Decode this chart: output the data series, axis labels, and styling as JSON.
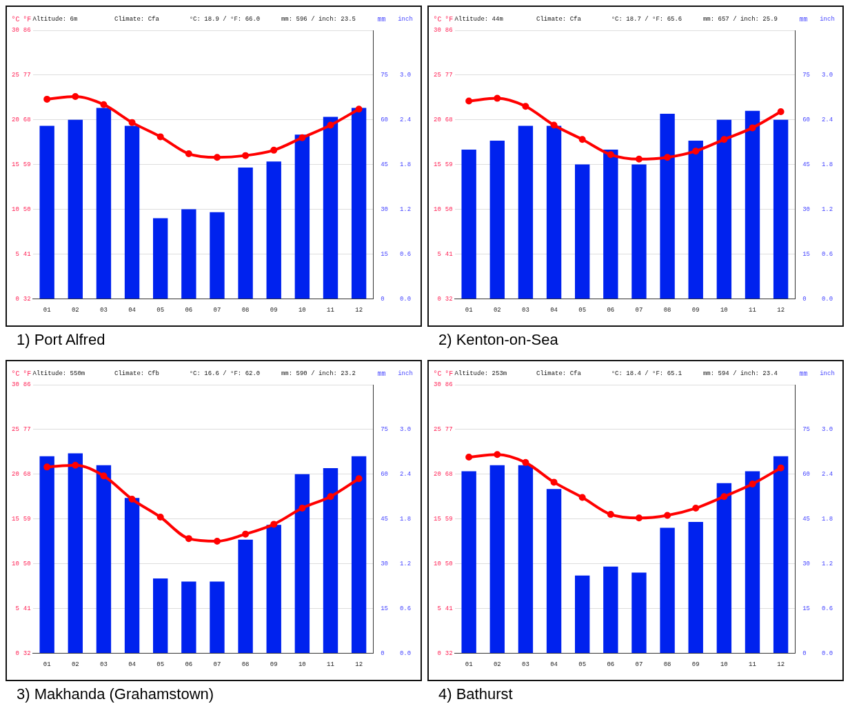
{
  "chart_data": [
    {
      "type": "bar",
      "title": "1) Port Alfred",
      "categories": [
        "01",
        "02",
        "03",
        "04",
        "05",
        "06",
        "07",
        "08",
        "09",
        "10",
        "11",
        "12"
      ],
      "series": [
        {
          "axis": "y2",
          "color": "#0022ee",
          "values": [
            58,
            60,
            64,
            58,
            27,
            30,
            29,
            44,
            46,
            55,
            61,
            64
          ]
        },
        {
          "type": "line",
          "axis": "y",
          "color": "#ff0000",
          "values": [
            22.3,
            22.6,
            21.7,
            19.7,
            18.1,
            16.2,
            15.8,
            16.0,
            16.6,
            18.0,
            19.4,
            21.2
          ]
        }
      ],
      "ylabel": "°C",
      "y3label": "°F",
      "y2label": "mm",
      "ylim": [
        0,
        30
      ],
      "yticks": [
        0,
        5,
        10,
        15,
        20,
        25,
        30
      ],
      "y3lim": [
        32,
        86
      ],
      "y3ticks": [
        32,
        41,
        50,
        59,
        68,
        77,
        86
      ],
      "y2lim": [
        0,
        90
      ],
      "y2ticks": [
        0,
        15,
        30,
        45,
        60,
        75
      ],
      "grid": "y",
      "legend": false,
      "marker": "circle",
      "annotations": [
        "Altitude: 6m",
        "Climate: Cfa",
        "°C: 18.9 / °F: 66.0",
        "mm: 596 / inch: 23.5",
        "inch",
        "0.0",
        "0.6",
        "1.2",
        "1.8",
        "2.4",
        "3.0"
      ]
    },
    {
      "type": "bar",
      "title": "2) Kenton-on-Sea",
      "categories": [
        "01",
        "02",
        "03",
        "04",
        "05",
        "06",
        "07",
        "08",
        "09",
        "10",
        "11",
        "12"
      ],
      "series": [
        {
          "axis": "y2",
          "color": "#0022ee",
          "values": [
            50,
            53,
            58,
            58,
            45,
            50,
            45,
            62,
            53,
            60,
            63,
            60
          ]
        },
        {
          "type": "line",
          "axis": "y",
          "color": "#ff0000",
          "values": [
            22.1,
            22.4,
            21.5,
            19.4,
            17.8,
            16.1,
            15.6,
            15.8,
            16.5,
            17.8,
            19.1,
            20.9
          ]
        }
      ],
      "ylabel": "°C",
      "y3label": "°F",
      "y2label": "mm",
      "ylim": [
        0,
        30
      ],
      "yticks": [
        0,
        5,
        10,
        15,
        20,
        25,
        30
      ],
      "y3lim": [
        32,
        86
      ],
      "y3ticks": [
        32,
        41,
        50,
        59,
        68,
        77,
        86
      ],
      "y2lim": [
        0,
        90
      ],
      "y2ticks": [
        0,
        15,
        30,
        45,
        60,
        75
      ],
      "grid": "y",
      "legend": false,
      "marker": "circle",
      "annotations": [
        "Altitude: 44m",
        "Climate: Cfa",
        "°C: 18.7 / °F: 65.6",
        "mm: 657 / inch: 25.9",
        "inch",
        "0.0",
        "0.6",
        "1.2",
        "1.8",
        "2.4",
        "3.0"
      ]
    },
    {
      "type": "bar",
      "title": "3) Makhanda (Grahamstown)",
      "categories": [
        "01",
        "02",
        "03",
        "04",
        "05",
        "06",
        "07",
        "08",
        "09",
        "10",
        "11",
        "12"
      ],
      "series": [
        {
          "axis": "y2",
          "color": "#0022ee",
          "values": [
            66,
            67,
            63,
            52,
            25,
            24,
            24,
            38,
            43,
            60,
            62,
            66
          ]
        },
        {
          "type": "line",
          "axis": "y",
          "color": "#ff0000",
          "values": [
            20.8,
            21.0,
            19.8,
            17.2,
            15.2,
            12.8,
            12.5,
            13.3,
            14.4,
            16.2,
            17.5,
            19.5
          ]
        }
      ],
      "ylabel": "°C",
      "y3label": "°F",
      "y2label": "mm",
      "ylim": [
        0,
        30
      ],
      "yticks": [
        0,
        5,
        10,
        15,
        20,
        25,
        30
      ],
      "y3lim": [
        32,
        86
      ],
      "y3ticks": [
        32,
        41,
        50,
        59,
        68,
        77,
        86
      ],
      "y2lim": [
        0,
        90
      ],
      "y2ticks": [
        0,
        15,
        30,
        45,
        60,
        75
      ],
      "grid": "y",
      "legend": false,
      "marker": "circle",
      "annotations": [
        "Altitude: 550m",
        "Climate: Cfb",
        "°C: 16.6 / °F: 62.0",
        "mm: 590 / inch: 23.2",
        "inch",
        "0.0",
        "0.6",
        "1.2",
        "1.8",
        "2.4",
        "3.0"
      ]
    },
    {
      "type": "bar",
      "title": "4) Bathurst",
      "categories": [
        "01",
        "02",
        "03",
        "04",
        "05",
        "06",
        "07",
        "08",
        "09",
        "10",
        "11",
        "12"
      ],
      "series": [
        {
          "axis": "y2",
          "color": "#0022ee",
          "values": [
            61,
            63,
            63,
            55,
            26,
            29,
            27,
            42,
            44,
            57,
            61,
            66
          ]
        },
        {
          "type": "line",
          "axis": "y",
          "color": "#ff0000",
          "values": [
            21.9,
            22.2,
            21.3,
            19.1,
            17.4,
            15.5,
            15.1,
            15.4,
            16.2,
            17.5,
            18.9,
            20.7
          ]
        }
      ],
      "ylabel": "°C",
      "y3label": "°F",
      "y2label": "mm",
      "ylim": [
        0,
        30
      ],
      "yticks": [
        0,
        5,
        10,
        15,
        20,
        25,
        30
      ],
      "y3lim": [
        32,
        86
      ],
      "y3ticks": [
        32,
        41,
        50,
        59,
        68,
        77,
        86
      ],
      "y2lim": [
        0,
        90
      ],
      "y2ticks": [
        0,
        15,
        30,
        45,
        60,
        75
      ],
      "grid": "y",
      "legend": false,
      "marker": "circle",
      "annotations": [
        "Altitude: 253m",
        "Climate: Cfa",
        "°C: 18.4 / °F: 65.1",
        "mm: 594 / inch: 23.4",
        "inch",
        "0.0",
        "0.6",
        "1.2",
        "1.8",
        "2.4",
        "3.0"
      ]
    }
  ]
}
